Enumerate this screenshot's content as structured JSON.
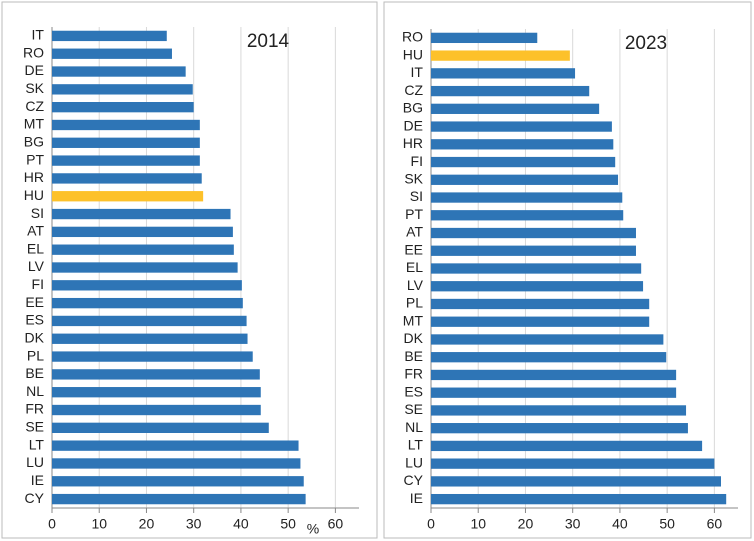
{
  "chart_data": [
    {
      "type": "bar",
      "orientation": "horizontal",
      "title": "2014",
      "xlabel": "%",
      "categories": [
        "IT",
        "RO",
        "DE",
        "SK",
        "CZ",
        "MT",
        "BG",
        "PT",
        "HR",
        "HU",
        "SI",
        "AT",
        "EL",
        "LV",
        "FI",
        "EE",
        "ES",
        "DK",
        "PL",
        "BE",
        "NL",
        "FR",
        "SE",
        "LT",
        "LU",
        "IE",
        "CY"
      ],
      "values": [
        24.3,
        25.4,
        28.3,
        29.8,
        30,
        31.3,
        31.3,
        31.3,
        31.7,
        32,
        37.8,
        38.3,
        38.5,
        39.3,
        40.2,
        40.4,
        41.2,
        41.4,
        42.5,
        44,
        44.2,
        44.2,
        45.9,
        52.2,
        52.6,
        53.3,
        53.7
      ],
      "colors": [
        "#2e75b6",
        "#2e75b6",
        "#2e75b6",
        "#2e75b6",
        "#2e75b6",
        "#2e75b6",
        "#2e75b6",
        "#2e75b6",
        "#2e75b6",
        "#fdc12a",
        "#2e75b6",
        "#2e75b6",
        "#2e75b6",
        "#2e75b6",
        "#2e75b6",
        "#2e75b6",
        "#2e75b6",
        "#2e75b6",
        "#2e75b6",
        "#2e75b6",
        "#2e75b6",
        "#2e75b6",
        "#2e75b6",
        "#2e75b6",
        "#2e75b6",
        "#2e75b6",
        "#2e75b6"
      ],
      "xlim": [
        0,
        65
      ],
      "xticks": [
        0,
        10,
        20,
        30,
        40,
        50,
        60
      ],
      "grid": true
    },
    {
      "type": "bar",
      "orientation": "horizontal",
      "title": "2023",
      "categories": [
        "RO",
        "HU",
        "IT",
        "CZ",
        "BG",
        "DE",
        "HR",
        "FI",
        "SK",
        "SI",
        "PT",
        "AT",
        "EE",
        "EL",
        "LV",
        "PL",
        "MT",
        "DK",
        "BE",
        "FR",
        "ES",
        "SE",
        "NL",
        "LT",
        "LU",
        "CY",
        "IE"
      ],
      "values": [
        22.5,
        29.4,
        30.5,
        33.5,
        35.6,
        38.3,
        38.6,
        39,
        39.6,
        40.5,
        40.7,
        43.4,
        43.4,
        44.5,
        44.9,
        46.2,
        46.2,
        49.2,
        49.8,
        51.9,
        51.9,
        54,
        54.4,
        57.4,
        60,
        61.4,
        62.5
      ],
      "colors": [
        "#2e75b6",
        "#fdc12a",
        "#2e75b6",
        "#2e75b6",
        "#2e75b6",
        "#2e75b6",
        "#2e75b6",
        "#2e75b6",
        "#2e75b6",
        "#2e75b6",
        "#2e75b6",
        "#2e75b6",
        "#2e75b6",
        "#2e75b6",
        "#2e75b6",
        "#2e75b6",
        "#2e75b6",
        "#2e75b6",
        "#2e75b6",
        "#2e75b6",
        "#2e75b6",
        "#2e75b6",
        "#2e75b6",
        "#2e75b6",
        "#2e75b6",
        "#2e75b6",
        "#2e75b6"
      ],
      "xlim": [
        0,
        65
      ],
      "xticks": [
        0,
        10,
        20,
        30,
        40,
        50,
        60
      ],
      "grid": true
    }
  ]
}
